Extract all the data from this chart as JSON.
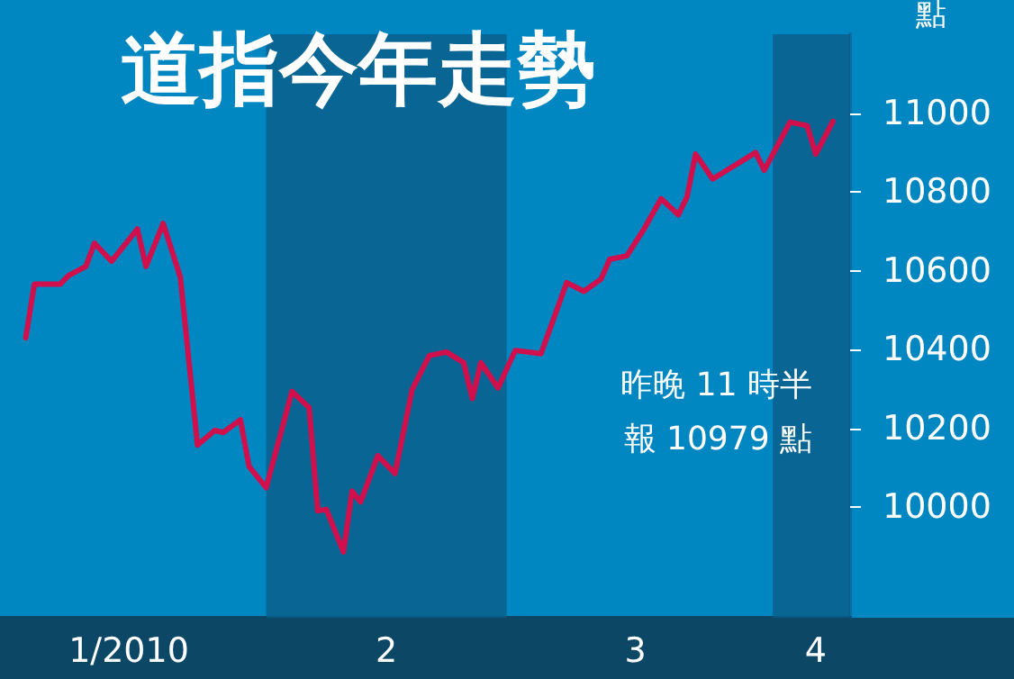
{
  "chart_data": {
    "type": "line",
    "title": "道指今年走勢",
    "ylabel": "點",
    "annotations": [
      "昨晚 11 時半",
      "報 10979 點"
    ],
    "x": [
      "2010-01-04",
      "2010-01-05",
      "2010-01-08",
      "2010-01-09",
      "2010-01-11",
      "2010-01-12",
      "2010-01-14",
      "2010-01-17",
      "2010-01-18",
      "2010-01-20",
      "2010-01-22",
      "2010-01-24",
      "2010-01-26",
      "2010-01-27",
      "2010-01-29",
      "2010-01-30",
      "2010-02-01",
      "2010-02-04",
      "2010-02-06",
      "2010-02-07",
      "2010-02-08",
      "2010-02-10",
      "2010-02-11",
      "2010-02-12",
      "2010-02-14",
      "2010-02-16",
      "2010-02-18",
      "2010-02-20",
      "2010-02-22",
      "2010-02-24",
      "2010-02-25",
      "2010-02-26",
      "2010-02-28",
      "2010-03-02",
      "2010-03-05",
      "2010-03-08",
      "2010-03-10",
      "2010-03-12",
      "2010-03-13",
      "2010-03-15",
      "2010-03-17",
      "2010-03-19",
      "2010-03-21",
      "2010-03-22",
      "2010-03-23",
      "2010-03-25",
      "2010-03-30",
      "2010-03-31",
      "2010-04-03",
      "2010-04-05",
      "2010-04-06",
      "2010-04-08"
    ],
    "series": [
      {
        "color": "#d0104c",
        "values": [
          10430,
          10566,
          10566,
          10588,
          10611,
          10670,
          10624,
          10706,
          10611,
          10720,
          10584,
          10158,
          10195,
          10190,
          10222,
          10104,
          10050,
          10294,
          10253,
          9991,
          9995,
          9887,
          10041,
          10014,
          10131,
          10086,
          10299,
          10385,
          10394,
          10367,
          10276,
          10367,
          10303,
          10398,
          10390,
          10570,
          10548,
          10579,
          10629,
          10638,
          10706,
          10783,
          10742,
          10787,
          10896,
          10833,
          10900,
          10855,
          10977,
          10968,
          10896,
          10979
        ]
      }
    ],
    "xlim": [
      "2010-01-01",
      "2010-04-10"
    ],
    "xticks": [
      {
        "value": "2010-01-16",
        "label": "1/2010"
      },
      {
        "value": "2010-02-15",
        "label": "2"
      },
      {
        "value": "2010-03-16",
        "label": "3"
      },
      {
        "value": "2010-04-06",
        "label": "4"
      }
    ],
    "ylim": [
      9720,
      11200
    ],
    "yticks": [
      10000,
      10200,
      10400,
      10600,
      10800,
      11000
    ],
    "bands": [
      {
        "axis": "x",
        "from": "2010-02-01",
        "to": "2010-03-01",
        "color": "#0a5d88"
      },
      {
        "axis": "x",
        "from": "2010-04-01",
        "to": "2010-04-10",
        "color": "#0a5d88"
      }
    ],
    "grid": false,
    "marker": "none",
    "line_style": "solid"
  }
}
